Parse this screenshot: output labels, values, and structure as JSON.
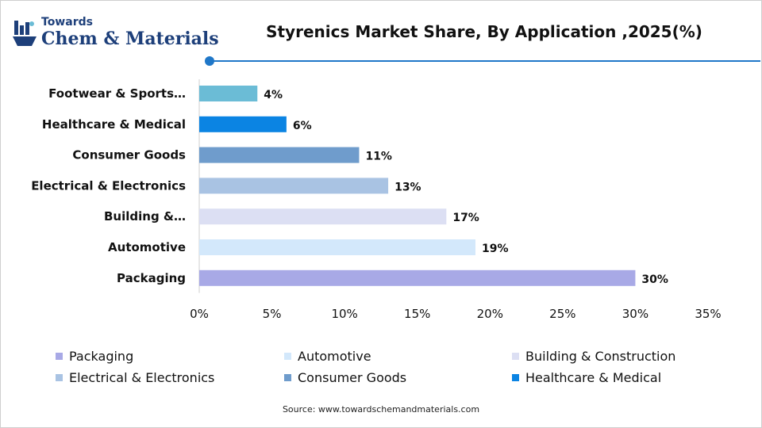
{
  "brand": {
    "line1": "Towards",
    "line2": "Chem & Materials"
  },
  "source": "Source: www.towardschemandmaterials.com",
  "colors": {
    "accent": "#1f77c8"
  },
  "chart_data": {
    "type": "bar",
    "orientation": "horizontal",
    "title": "Styrenics Market Share, By Application ,2025(%)",
    "categories": [
      "Footwear & Sports…",
      "Healthcare & Medical",
      "Consumer Goods",
      "Electrical & Electronics",
      "Building &…",
      "Automotive",
      "Packaging"
    ],
    "values": [
      4,
      6,
      11,
      13,
      17,
      19,
      30
    ],
    "value_labels": [
      "4%",
      "6%",
      "11%",
      "13%",
      "17%",
      "19%",
      "30%"
    ],
    "bar_colors": [
      "#6bbcd6",
      "#0b84e3",
      "#6f9ccc",
      "#a9c3e3",
      "#dcdff3",
      "#d3e8fb",
      "#a8a9e6"
    ],
    "xlim": [
      0,
      35
    ],
    "xticks": [
      0,
      5,
      10,
      15,
      20,
      25,
      30,
      35
    ],
    "xtick_labels": [
      "0%",
      "5%",
      "10%",
      "15%",
      "20%",
      "25%",
      "30%",
      "35%"
    ],
    "grid": false,
    "legend_position": "bottom",
    "legend": [
      {
        "label": "Packaging",
        "color": "#a8a9e6"
      },
      {
        "label": "Automotive",
        "color": "#d3e8fb"
      },
      {
        "label": "Building & Construction",
        "color": "#dcdff3"
      },
      {
        "label": "Electrical & Electronics",
        "color": "#a9c3e3"
      },
      {
        "label": "Consumer Goods",
        "color": "#6f9ccc"
      },
      {
        "label": "Healthcare & Medical",
        "color": "#0b84e3"
      }
    ]
  }
}
